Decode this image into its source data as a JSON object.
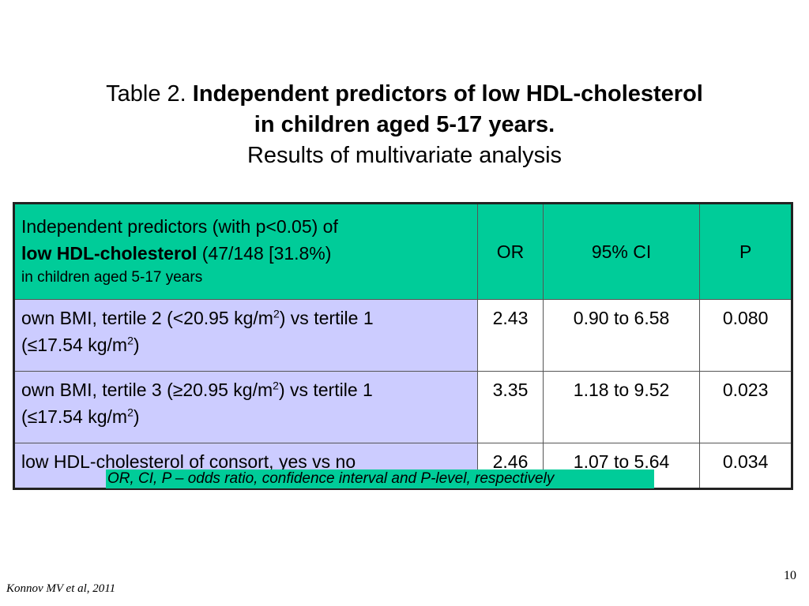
{
  "title": {
    "prefix": "Table 2. ",
    "bold_line1": "Independent predictors of low HDL-cholesterol",
    "bold_line2": "in children aged 5-17 years.",
    "subtitle": "Results of multivariate analysis"
  },
  "table": {
    "header": {
      "predictor_line1": "Independent predictors (with p<0.05) of",
      "predictor_line2_bold": "low HDL-cholesterol",
      "predictor_line2_rest": " (47/148 [31.8%)",
      "predictor_line3": "in children aged 5-17 years",
      "or": "OR",
      "ci": "95% CI",
      "p": "P"
    },
    "rows": [
      {
        "desc_a": "own BMI, tertile 2 (<20.95 kg/m",
        "sup_a": "2",
        "desc_b": ") vs tertile 1",
        "desc_c": "(≤17.54 kg/m",
        "sup_c": "2",
        "desc_d": ")",
        "or": "2.43",
        "ci": "0.90 to 6.58",
        "p": "0.080"
      },
      {
        "desc_a": "own BMI, tertile 3 (≥20.95 kg/m",
        "sup_a": "2",
        "desc_b": ") vs tertile 1",
        "desc_c": "(≤17.54 kg/m",
        "sup_c": "2",
        "desc_d": ")",
        "or": "3.35",
        "ci": "1.18 to 9.52",
        "p": "0.023"
      },
      {
        "desc_a": "low HDL-cholesterol of consort, yes vs no",
        "or": "2.46",
        "ci": "1.07 to 5.64",
        "p": "0.034"
      }
    ]
  },
  "footnote": "OR, CI, P – odds ratio, confidence interval and P-level, respectively",
  "citation": "Konnov MV et al, 2011",
  "page_number": "10",
  "colors": {
    "header_bg": "#00cc99",
    "predictor_bg": "#ccccff",
    "footnote_bg": "#00cc99"
  }
}
